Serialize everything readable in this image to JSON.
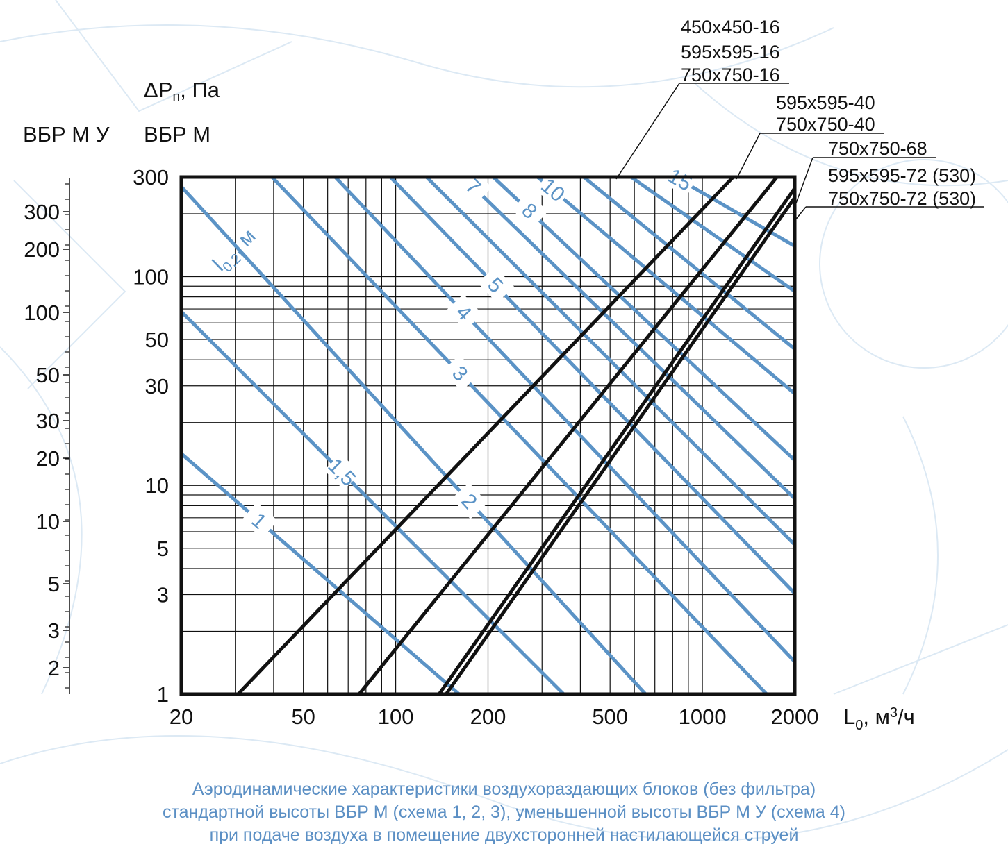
{
  "chart_data": {
    "type": "line",
    "scale": "log-log",
    "grid": true,
    "x_axis": {
      "label_main": "L",
      "label_sub": "0",
      "label_rest": ", м",
      "label_sup": "3",
      "label_end": "/ч",
      "range": [
        20,
        2000
      ],
      "ticks": [
        "20",
        "50",
        "100",
        "200",
        "500",
        "1000",
        "2000"
      ]
    },
    "y_axis": {
      "title_main": "ΔP",
      "title_sub": "п",
      "title_rest": ", Па",
      "label": "ВБР М",
      "range": [
        1,
        300
      ],
      "ticks": [
        "300",
        "100",
        "50",
        "30",
        "10",
        "5",
        "3",
        "1"
      ]
    },
    "y2_axis": {
      "label": "ВБР М У",
      "ticks": [
        "300",
        "200",
        "100",
        "50",
        "30",
        "20",
        "10",
        "5",
        "3",
        "2"
      ]
    },
    "black_series": [
      {
        "labels": [
          "450x450-16",
          "595x595-16",
          "750x750-16"
        ],
        "x": [
          30.6,
          1260
        ],
        "y": [
          1,
          300
        ]
      },
      {
        "labels": [
          "595x595-40",
          "750x750-40"
        ],
        "x": [
          76,
          1750
        ],
        "y": [
          1,
          300
        ]
      },
      {
        "labels": [
          "750x750-68"
        ],
        "x": [
          138.5,
          2000
        ],
        "y": [
          1,
          265
        ]
      },
      {
        "labels": [
          "595x595-72 (530)",
          "750x750-72 (530)"
        ],
        "x": [
          146,
          2000
        ],
        "y": [
          1,
          239
        ]
      }
    ],
    "blue_series_title_main": "l",
    "blue_series_title_sub": "0,2",
    "blue_series_title_rest": ", м",
    "blue_series": [
      {
        "label": "1",
        "x": [
          20,
          161
        ],
        "y": [
          14.2,
          1
        ]
      },
      {
        "label": "1,5",
        "x": [
          20,
          353
        ],
        "y": [
          68,
          1
        ]
      },
      {
        "label": "2",
        "x": [
          20,
          653
        ],
        "y": [
          270,
          1
        ]
      },
      {
        "label": "3",
        "x": [
          39.5,
          1620
        ],
        "y": [
          300,
          1
        ]
      },
      {
        "label": "4",
        "x": [
          63.5,
          2000
        ],
        "y": [
          300,
          1.43
        ]
      },
      {
        "label": "5",
        "x": [
          96,
          2000
        ],
        "y": [
          300,
          3.04
        ]
      },
      {
        "label": "",
        "x": [
          126,
          2000
        ],
        "y": [
          300,
          5.2
        ]
      },
      {
        "label": "7",
        "x": [
          166,
          2000
        ],
        "y": [
          300,
          8.64
        ]
      },
      {
        "label": "8",
        "x": [
          208,
          2000
        ],
        "y": [
          300,
          13.2
        ]
      },
      {
        "label": "10",
        "x": [
          290,
          2000
        ],
        "y": [
          300,
          27.5
        ]
      },
      {
        "label": "",
        "x": [
          410,
          2000
        ],
        "y": [
          300,
          45
        ]
      },
      {
        "label": "",
        "x": [
          585,
          2000
        ],
        "y": [
          300,
          85
        ]
      },
      {
        "label": "15",
        "x": [
          815,
          2000
        ],
        "y": [
          300,
          140
        ]
      }
    ]
  },
  "caption": {
    "line1": "Аэродинамические характеристики воздухораздающих блоков (без фильтра)",
    "line2": "стандартной высоты ВБР М (схема 1, 2, 3), уменьшенной высоты ВБР М У (схема 4)",
    "line3": "при подаче воздуха в помещение двухсторонней настилающейся струей"
  },
  "colors": {
    "blue_lines": "#5b93c6",
    "black_lines": "#111111",
    "caption": "#5b8fc4",
    "background_pattern": "#dce9f4"
  }
}
